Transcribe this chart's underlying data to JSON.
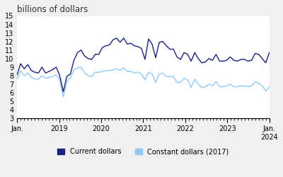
{
  "title": "billions of dollars",
  "title_fontsize": 8.5,
  "ylabel": "",
  "xlabel": "",
  "ylim": [
    3,
    15
  ],
  "yticks": [
    3,
    4,
    5,
    6,
    7,
    8,
    9,
    10,
    11,
    12,
    13,
    14,
    15
  ],
  "xtick_labels": [
    "Jan.",
    "2019",
    "2020",
    "2021",
    "2022",
    "2023",
    "Jan.\n2024"
  ],
  "line1_color": "#1a237e",
  "line2_color": "#90caf9",
  "legend1_label": "Current dollars",
  "legend2_label": "Constant dollars (2017)",
  "background_color": "#f0f0f0",
  "plot_bg": "#ffffff",
  "current_dollars": [
    8.1,
    9.4,
    8.8,
    9.3,
    8.6,
    8.4,
    8.3,
    9.0,
    8.3,
    8.5,
    8.7,
    9.0,
    8.0,
    6.1,
    7.9,
    8.2,
    9.8,
    10.7,
    11.0,
    10.3,
    10.0,
    9.9,
    10.5,
    10.5,
    11.3,
    11.5,
    11.6,
    12.2,
    12.4,
    11.9,
    12.4,
    11.7,
    11.8,
    11.5,
    11.4,
    11.2,
    9.9,
    12.3,
    11.7,
    10.1,
    11.9,
    12.0,
    11.5,
    11.1,
    11.1,
    10.2,
    9.9,
    10.7,
    10.5,
    9.7,
    10.7,
    10.0,
    9.5,
    9.6,
    10.0,
    9.8,
    10.5,
    9.7,
    9.7,
    9.8,
    10.2,
    9.8,
    9.7,
    9.9,
    9.9,
    9.7,
    9.8,
    10.6,
    10.5,
    10.0,
    9.5,
    10.7
  ],
  "constant_dollars": [
    7.6,
    8.6,
    8.0,
    8.3,
    7.8,
    7.6,
    7.6,
    8.0,
    7.7,
    7.8,
    7.9,
    8.1,
    7.5,
    5.5,
    7.3,
    7.8,
    8.7,
    8.9,
    9.0,
    8.3,
    8.0,
    7.9,
    8.4,
    8.4,
    8.5,
    8.6,
    8.6,
    8.7,
    8.8,
    8.6,
    8.9,
    8.5,
    8.5,
    8.3,
    8.4,
    8.2,
    7.5,
    8.4,
    8.2,
    7.2,
    8.2,
    8.3,
    7.9,
    7.9,
    7.9,
    7.2,
    7.2,
    7.7,
    7.5,
    6.6,
    7.6,
    7.0,
    6.6,
    6.7,
    7.0,
    6.8,
    7.3,
    6.7,
    6.7,
    6.8,
    7.0,
    6.7,
    6.7,
    6.8,
    6.8,
    6.7,
    6.8,
    7.3,
    7.1,
    6.8,
    6.2,
    6.7
  ],
  "n_months": 72
}
